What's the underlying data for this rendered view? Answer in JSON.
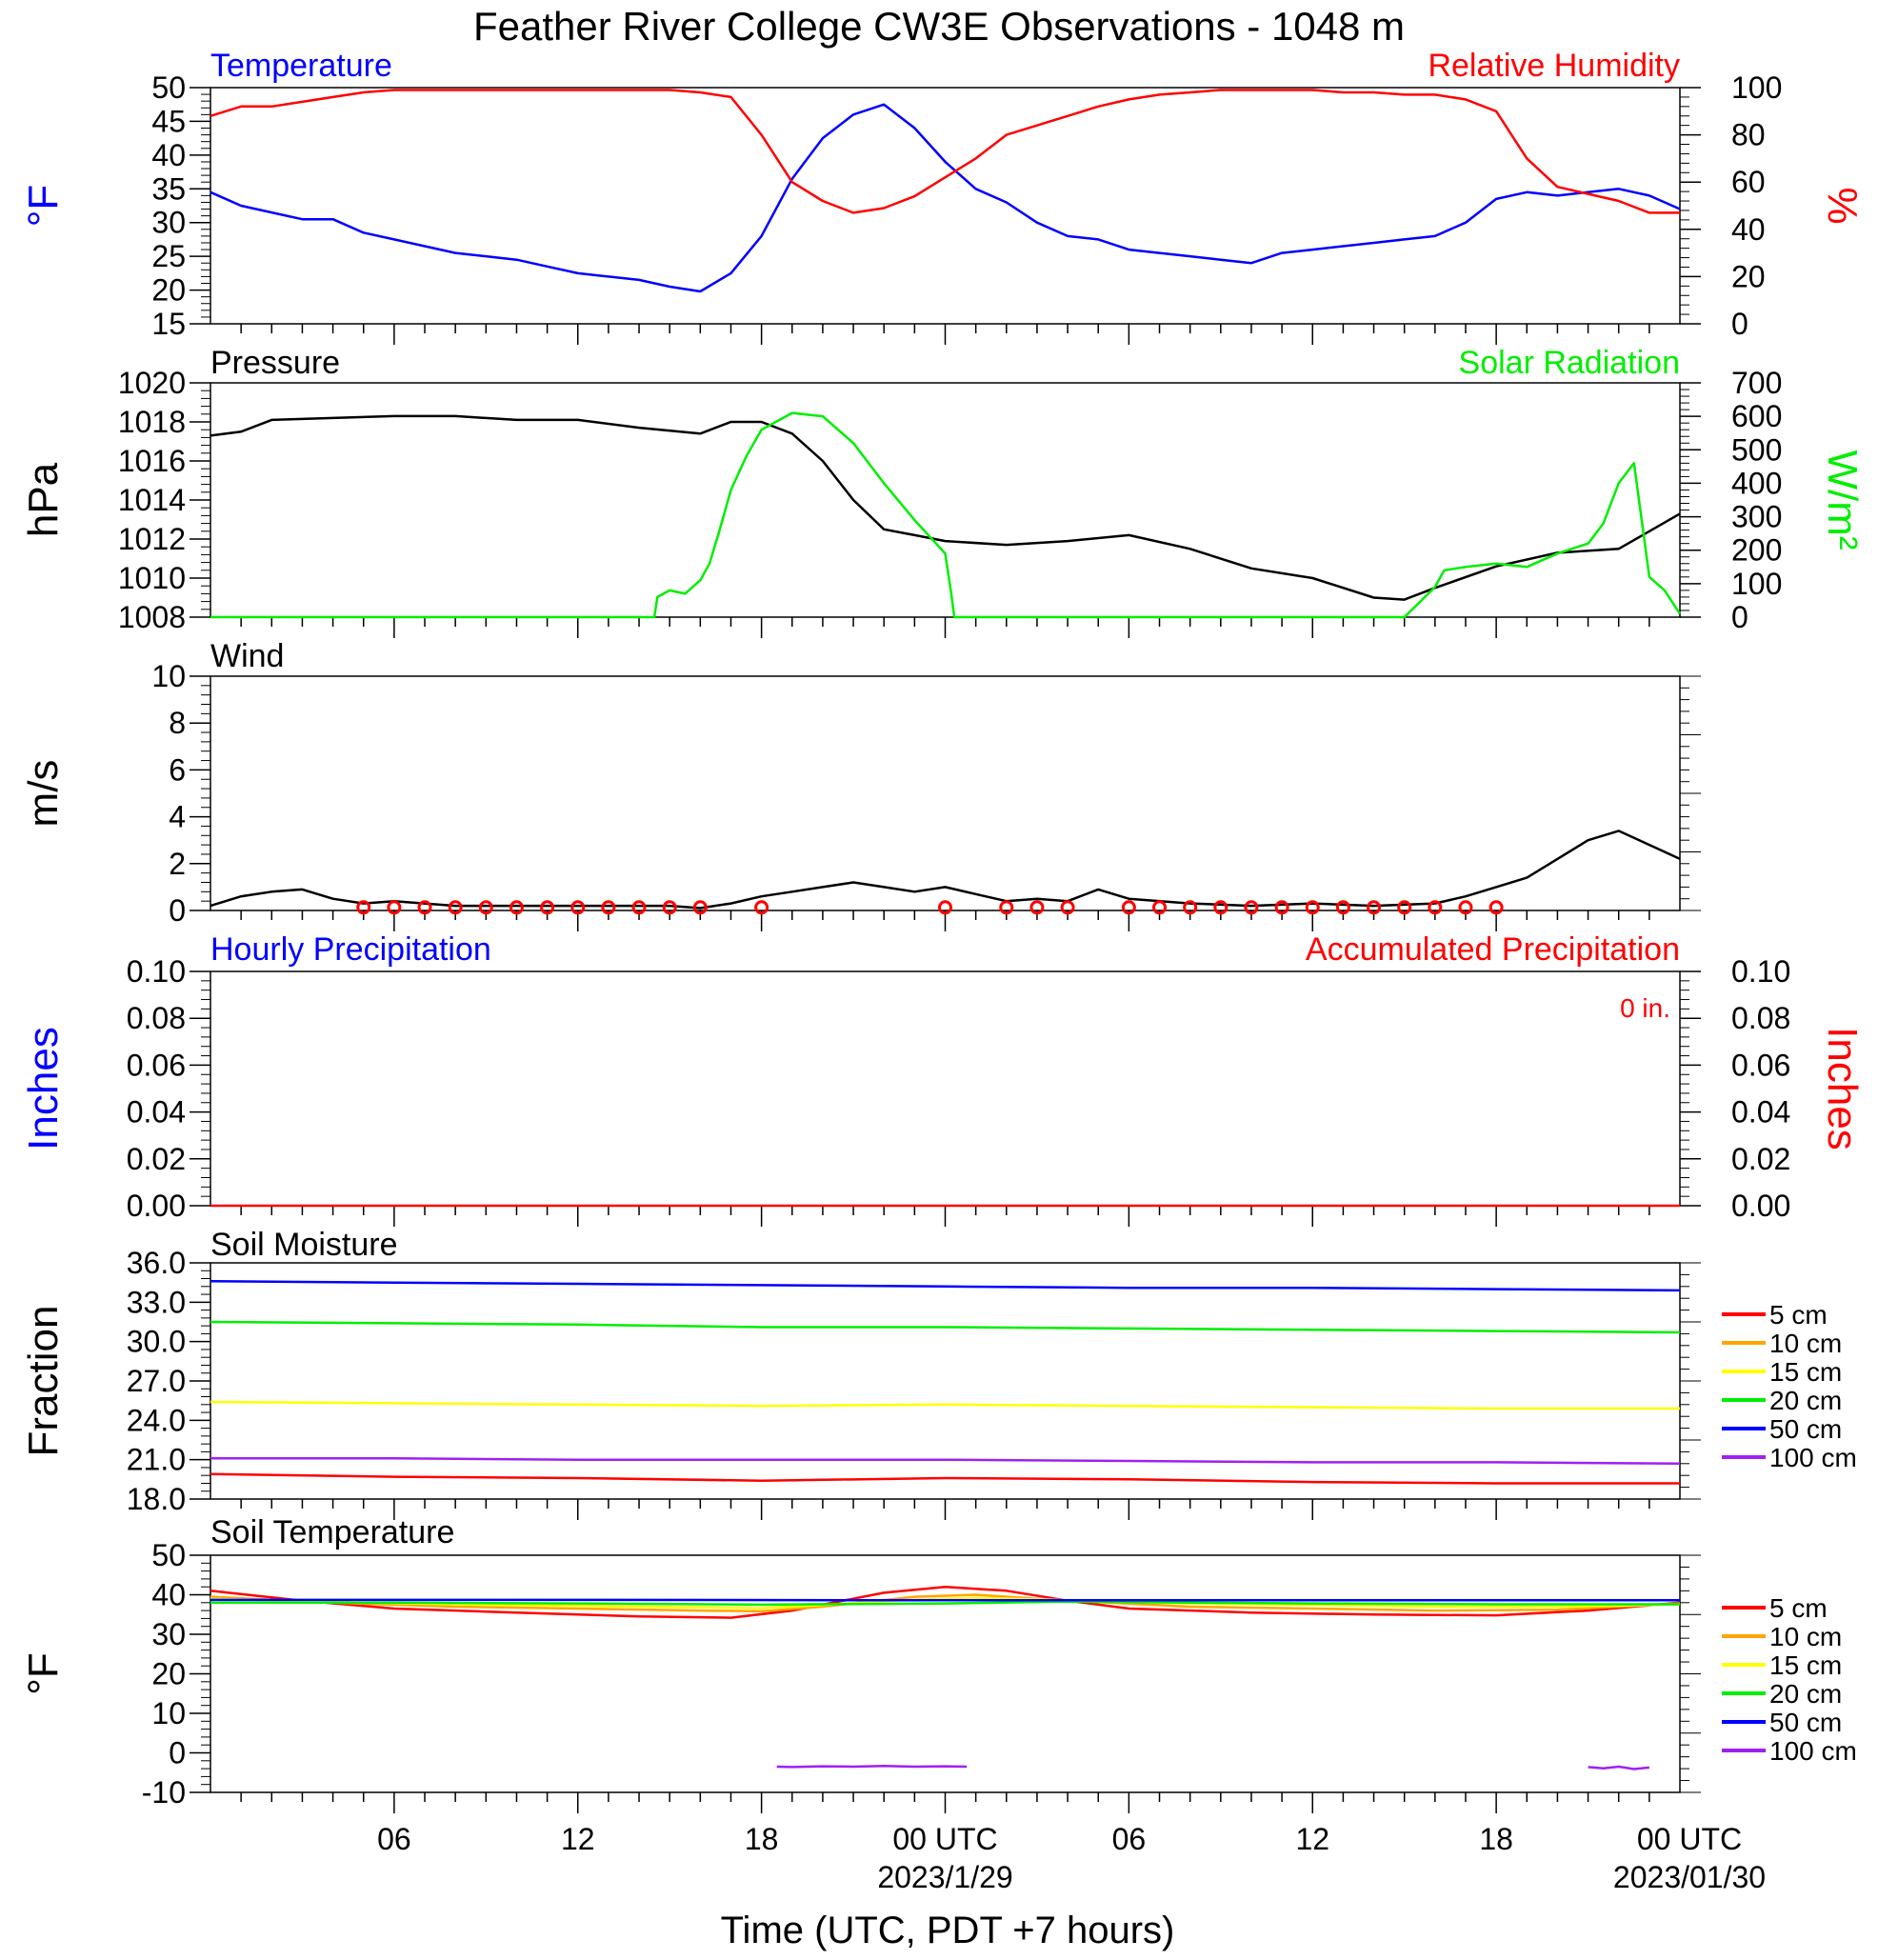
{
  "title": "Feather River College CW3E Observations - 1048 m",
  "x_axis": {
    "label": "Time (UTC, PDT +7 hours)",
    "range_hours": [
      0,
      48
    ],
    "ticks": [
      {
        "h": 6,
        "label": "06",
        "date": ""
      },
      {
        "h": 12,
        "label": "12",
        "date": ""
      },
      {
        "h": 18,
        "label": "18",
        "date": ""
      },
      {
        "h": 24,
        "label": "00 UTC",
        "date": "2023/1/29"
      },
      {
        "h": 30,
        "label": "06",
        "date": ""
      },
      {
        "h": 36,
        "label": "12",
        "date": ""
      },
      {
        "h": 42,
        "label": "18",
        "date": ""
      },
      {
        "h": 48,
        "label": "00 UTC",
        "date": "2023/01/30"
      }
    ]
  },
  "colors": {
    "blue": "#0000ff",
    "red": "#ff0000",
    "green": "#00ee00",
    "black": "#000000",
    "orange": "#ffa500",
    "yellow": "#ffff00",
    "purple": "#a020f0"
  },
  "chart_data": [
    {
      "type": "line",
      "panel": "temperature_humidity",
      "left_title": "Temperature",
      "right_title": "Relative Humidity",
      "ylabel_left": "°F",
      "ylabel_right": "%",
      "ylim_left": [
        15,
        50
      ],
      "yticks_left": [
        "15",
        "20",
        "25",
        "30",
        "35",
        "40",
        "45",
        "50"
      ],
      "ylim_right": [
        0,
        100
      ],
      "yticks_right": [
        "0",
        "20",
        "40",
        "60",
        "80",
        "100"
      ],
      "series": [
        {
          "name": "Temperature",
          "axis": "left",
          "color": "#0000ff",
          "x": [
            -0.1,
            1,
            2,
            3,
            4,
            5,
            6,
            7,
            8,
            9,
            10,
            11,
            12,
            13,
            14,
            15,
            16,
            17,
            18,
            19,
            20,
            21,
            22,
            23,
            24,
            25,
            26,
            27,
            28,
            29,
            30,
            31,
            32,
            33,
            34,
            35,
            36,
            37,
            38,
            39,
            40,
            41,
            42,
            43,
            44,
            45,
            46,
            47,
            48
          ],
          "y": [
            34.5,
            32.5,
            31.5,
            30.5,
            30.5,
            28.5,
            27.5,
            26.5,
            25.5,
            25,
            24.5,
            23.5,
            22.5,
            22,
            21.5,
            20.5,
            19.8,
            22.5,
            28,
            36.5,
            42.5,
            46,
            47.5,
            44,
            39,
            35,
            33,
            30,
            28,
            27.5,
            26,
            25.5,
            25,
            24.5,
            24,
            25.5,
            26,
            26.5,
            27,
            27.5,
            28,
            30,
            33.5,
            34.5,
            34,
            34.5,
            35,
            34,
            32
          ]
        },
        {
          "name": "Relative Humidity",
          "axis": "right",
          "color": "#ff0000",
          "x": [
            -0.1,
            1,
            2,
            3,
            4,
            5,
            6,
            7,
            8,
            9,
            10,
            11,
            12,
            13,
            14,
            15,
            16,
            17,
            18,
            19,
            20,
            21,
            22,
            23,
            24,
            25,
            26,
            27,
            28,
            29,
            30,
            31,
            32,
            33,
            34,
            35,
            36,
            37,
            38,
            39,
            40,
            41,
            42,
            43,
            44,
            45,
            46,
            47,
            48
          ],
          "y": [
            88,
            92,
            92,
            94,
            96,
            98,
            99,
            99,
            99,
            99,
            99,
            99,
            99,
            99,
            99,
            99,
            98,
            96,
            80,
            60,
            52,
            47,
            49,
            54,
            62,
            70,
            80,
            84,
            88,
            92,
            95,
            97,
            98,
            99,
            99,
            99,
            99,
            98,
            98,
            97,
            97,
            95,
            90,
            70,
            58,
            55,
            52,
            47,
            47
          ]
        }
      ]
    },
    {
      "type": "line",
      "panel": "pressure_solar",
      "left_title": "Pressure",
      "right_title": "Solar Radiation",
      "ylabel_left": "hPa",
      "ylabel_right": "W/m²",
      "ylim_left": [
        1008,
        1020
      ],
      "yticks_left": [
        "1008",
        "1010",
        "1012",
        "1014",
        "1016",
        "1018",
        "1020"
      ],
      "ylim_right": [
        0,
        700
      ],
      "yticks_right": [
        "0",
        "100",
        "200",
        "300",
        "400",
        "500",
        "600",
        "700"
      ],
      "series": [
        {
          "name": "Pressure",
          "axis": "left",
          "color": "#000000",
          "x": [
            -0.1,
            1,
            2,
            4,
            6,
            8,
            10,
            12,
            14,
            16,
            17,
            18,
            19,
            20,
            21,
            22,
            23,
            24,
            26,
            28,
            30,
            32,
            34,
            36,
            38,
            39,
            40,
            42,
            44,
            46,
            48
          ],
          "y": [
            1017.3,
            1017.5,
            1018.1,
            1018.2,
            1018.3,
            1018.3,
            1018.1,
            1018.1,
            1017.7,
            1017.4,
            1018,
            1018,
            1017.4,
            1016,
            1014,
            1012.5,
            1012.2,
            1011.9,
            1011.7,
            1011.9,
            1012.2,
            1011.5,
            1010.5,
            1010,
            1009,
            1008.9,
            1009.5,
            1010.6,
            1011.3,
            1011.5,
            1013.3
          ]
        },
        {
          "name": "Solar Radiation",
          "axis": "right",
          "color": "#00ee00",
          "x": [
            -0.1,
            14.5,
            14.6,
            15,
            15.5,
            16,
            16.3,
            16.6,
            17,
            17.5,
            18,
            19,
            20,
            21,
            22,
            23,
            24,
            24.2,
            24.3,
            25,
            30,
            37,
            39,
            40,
            40.3,
            41,
            42,
            43,
            44,
            45,
            45.5,
            46,
            46.5,
            47,
            47.5,
            48
          ],
          "y": [
            0,
            0,
            60,
            80,
            70,
            110,
            160,
            250,
            380,
            480,
            560,
            610,
            600,
            520,
            400,
            290,
            190,
            70,
            0,
            0,
            0,
            0,
            0,
            90,
            140,
            150,
            160,
            150,
            190,
            220,
            280,
            400,
            460,
            120,
            80,
            10
          ]
        }
      ]
    },
    {
      "type": "line",
      "panel": "wind",
      "left_title": "Wind",
      "ylabel_left": "m/s",
      "ylim_left": [
        0,
        10
      ],
      "yticks_left": [
        "0",
        "2",
        "4",
        "6",
        "8",
        "10"
      ],
      "series": [
        {
          "name": "Wind",
          "axis": "left",
          "color": "#000000",
          "x": [
            -0.1,
            1,
            2,
            3,
            4,
            5,
            6,
            8,
            10,
            12,
            14,
            15,
            16,
            17,
            18,
            19,
            20,
            21,
            22,
            23,
            24,
            25,
            26,
            27,
            28,
            29,
            30,
            32,
            34,
            36,
            38,
            40,
            41,
            42,
            43,
            44,
            45,
            46,
            47,
            48
          ],
          "y": [
            0.2,
            0.6,
            0.8,
            0.9,
            0.5,
            0.3,
            0.4,
            0.2,
            0.2,
            0.2,
            0.2,
            0.2,
            0.1,
            0.3,
            0.6,
            0.8,
            1.0,
            1.2,
            1.0,
            0.8,
            1.0,
            0.7,
            0.4,
            0.5,
            0.4,
            0.9,
            0.5,
            0.3,
            0.2,
            0.3,
            0.2,
            0.3,
            0.6,
            1.0,
            1.4,
            2.2,
            3.0,
            3.4,
            2.8,
            2.2
          ]
        }
      ],
      "calm_markers_hours": [
        5,
        6,
        7,
        8,
        9,
        10,
        11,
        12,
        13,
        14,
        15,
        16,
        18,
        24,
        26,
        27,
        28,
        30,
        31,
        32,
        33,
        34,
        35,
        36,
        37,
        38,
        39,
        40,
        41,
        42
      ]
    },
    {
      "type": "line",
      "panel": "precipitation",
      "left_title": "Hourly Precipitation",
      "right_title": "Accumulated Precipitation",
      "annotation": "0 in.",
      "ylabel_left": "Inches",
      "ylabel_right": "Inches",
      "ylim_left": [
        0,
        0.1
      ],
      "yticks_left": [
        "0.00",
        "0.02",
        "0.04",
        "0.06",
        "0.08",
        "0.10"
      ],
      "ylim_right": [
        0,
        0.1
      ],
      "yticks_right": [
        "0.00",
        "0.02",
        "0.04",
        "0.06",
        "0.08",
        "0.10"
      ],
      "series": [
        {
          "name": "Accumulated Precipitation",
          "axis": "left",
          "color": "#ff0000",
          "x": [
            0,
            48
          ],
          "y": [
            0,
            0
          ]
        }
      ]
    },
    {
      "type": "line",
      "panel": "soil_moisture",
      "left_title": "Soil Moisture",
      "ylabel_left": "Fraction",
      "ylim_left": [
        18,
        36
      ],
      "yticks_left": [
        "18.0",
        "21.0",
        "24.0",
        "27.0",
        "30.0",
        "33.0",
        "36.0"
      ],
      "legend": [
        "5 cm",
        "10 cm",
        "15 cm",
        "20 cm",
        "50 cm",
        "100 cm"
      ],
      "legend_colors": [
        "#ff0000",
        "#ffa500",
        "#ffff00",
        "#00ee00",
        "#0000ff",
        "#a020f0"
      ],
      "series": [
        {
          "name": "5 cm",
          "color": "#ff0000",
          "x": [
            0,
            6,
            12,
            18,
            24,
            30,
            36,
            42,
            48
          ],
          "y": [
            19.9,
            19.7,
            19.6,
            19.4,
            19.6,
            19.5,
            19.3,
            19.2,
            19.2
          ]
        },
        {
          "name": "15 cm",
          "color": "#ffff00",
          "x": [
            0,
            6,
            12,
            18,
            24,
            30,
            36,
            42,
            48
          ],
          "y": [
            25.4,
            25.3,
            25.2,
            25.1,
            25.2,
            25.1,
            25.0,
            24.9,
            24.9
          ]
        },
        {
          "name": "20 cm",
          "color": "#00ee00",
          "x": [
            0,
            6,
            12,
            18,
            24,
            30,
            36,
            42,
            48
          ],
          "y": [
            31.5,
            31.4,
            31.3,
            31.1,
            31.1,
            31.0,
            30.9,
            30.8,
            30.7
          ]
        },
        {
          "name": "50 cm",
          "color": "#0000ff",
          "x": [
            0,
            6,
            12,
            18,
            24,
            30,
            36,
            42,
            48
          ],
          "y": [
            34.6,
            34.5,
            34.4,
            34.3,
            34.2,
            34.1,
            34.1,
            34.0,
            33.9
          ]
        },
        {
          "name": "100 cm",
          "color": "#a020f0",
          "x": [
            0,
            6,
            12,
            18,
            24,
            30,
            36,
            42,
            48
          ],
          "y": [
            21.1,
            21.1,
            21.0,
            21.0,
            21.0,
            20.9,
            20.8,
            20.8,
            20.7
          ]
        }
      ]
    },
    {
      "type": "line",
      "panel": "soil_temperature",
      "left_title": "Soil Temperature",
      "ylabel_left": "°F",
      "ylim_left": [
        -10,
        50
      ],
      "yticks_left": [
        "-10",
        "0",
        "10",
        "20",
        "30",
        "40",
        "50"
      ],
      "legend": [
        "5 cm",
        "10 cm",
        "15 cm",
        "20 cm",
        "50 cm",
        "100 cm"
      ],
      "legend_colors": [
        "#ff0000",
        "#ffa500",
        "#ffff00",
        "#00ee00",
        "#0000ff",
        "#a020f0"
      ],
      "series": [
        {
          "name": "5 cm",
          "color": "#ff0000",
          "x": [
            0,
            3,
            6,
            10,
            14,
            17,
            19,
            22,
            24,
            26,
            28,
            30,
            34,
            38,
            42,
            45,
            48
          ],
          "y": [
            41,
            38.5,
            36.5,
            35.5,
            34.5,
            34.2,
            36,
            40.5,
            42,
            41,
            38.5,
            36.5,
            35.5,
            35,
            34.8,
            36,
            38
          ]
        },
        {
          "name": "10 cm",
          "color": "#ffa500",
          "x": [
            0,
            4,
            8,
            12,
            16,
            18,
            20,
            23,
            25,
            28,
            32,
            36,
            40,
            44,
            48
          ],
          "y": [
            39.5,
            38,
            37,
            36.5,
            36,
            35.8,
            37,
            39.5,
            40,
            38.5,
            37,
            36.5,
            36,
            36.2,
            37.8
          ]
        },
        {
          "name": "15 cm",
          "color": "#ffff00",
          "x": [
            0,
            4,
            8,
            12,
            16,
            18,
            20,
            23,
            25,
            28,
            32,
            36,
            40,
            44,
            48
          ],
          "y": [
            39,
            38.2,
            37.6,
            37.2,
            36.8,
            36.6,
            37.4,
            38.8,
            39.2,
            38.6,
            37.8,
            37.4,
            37,
            37,
            37.6
          ]
        },
        {
          "name": "20 cm",
          "color": "#00ee00",
          "x": [
            0,
            6,
            12,
            18,
            24,
            28,
            32,
            36,
            42,
            48
          ],
          "y": [
            38,
            38,
            37.8,
            37.5,
            37.8,
            38.3,
            38,
            37.8,
            37.6,
            37.6
          ]
        },
        {
          "name": "50 cm",
          "color": "#0000ff",
          "x": [
            0,
            12,
            24,
            36,
            48
          ],
          "y": [
            38.7,
            38.7,
            38.6,
            38.6,
            38.6
          ]
        },
        {
          "name": "100 cm",
          "color": "#a020f0",
          "x": [
            18.5,
            19,
            20,
            21,
            22,
            23,
            24,
            24.7
          ],
          "y": [
            -3.5,
            -3.6,
            -3.4,
            -3.5,
            -3.3,
            -3.5,
            -3.4,
            -3.5
          ]
        },
        {
          "name": "100 cm",
          "color": "#a020f0",
          "x": [
            45,
            45.5,
            46,
            46.5,
            47
          ],
          "y": [
            -3.6,
            -3.9,
            -3.5,
            -4.1,
            -3.7
          ]
        }
      ]
    }
  ]
}
